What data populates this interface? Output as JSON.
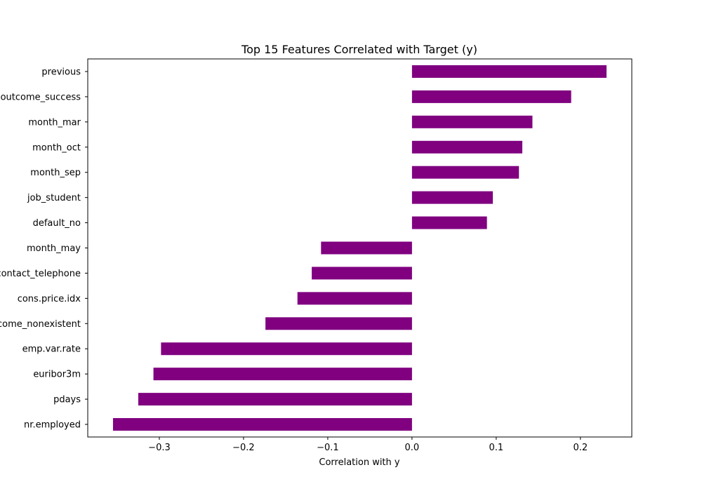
{
  "chart_data": {
    "type": "bar",
    "orientation": "horizontal",
    "title": "Top 15 Features Correlated with Target (y)",
    "xlabel": "Correlation with y",
    "ylabel": "",
    "xlim": [
      -0.385,
      0.261
    ],
    "xticks": [
      {
        "value": -0.3,
        "label": "−0.3"
      },
      {
        "value": -0.2,
        "label": "−0.2"
      },
      {
        "value": -0.1,
        "label": "−0.1"
      },
      {
        "value": 0.0,
        "label": "0.0"
      },
      {
        "value": 0.1,
        "label": "0.1"
      },
      {
        "value": 0.2,
        "label": "0.2"
      }
    ],
    "categories": [
      "previous",
      "poutcome_success",
      "month_mar",
      "month_oct",
      "month_sep",
      "job_student",
      "default_no",
      "month_may",
      "contact_telephone",
      "cons.price.idx",
      "poutcome_nonexistent",
      "emp.var.rate",
      "euribor3m",
      "pdays",
      "nr.employed"
    ],
    "values": [
      0.231,
      0.189,
      0.143,
      0.131,
      0.127,
      0.096,
      0.089,
      -0.108,
      -0.119,
      -0.136,
      -0.174,
      -0.298,
      -0.307,
      -0.325,
      -0.355
    ],
    "bar_color": "#800080",
    "grid": false,
    "legend": "none"
  }
}
